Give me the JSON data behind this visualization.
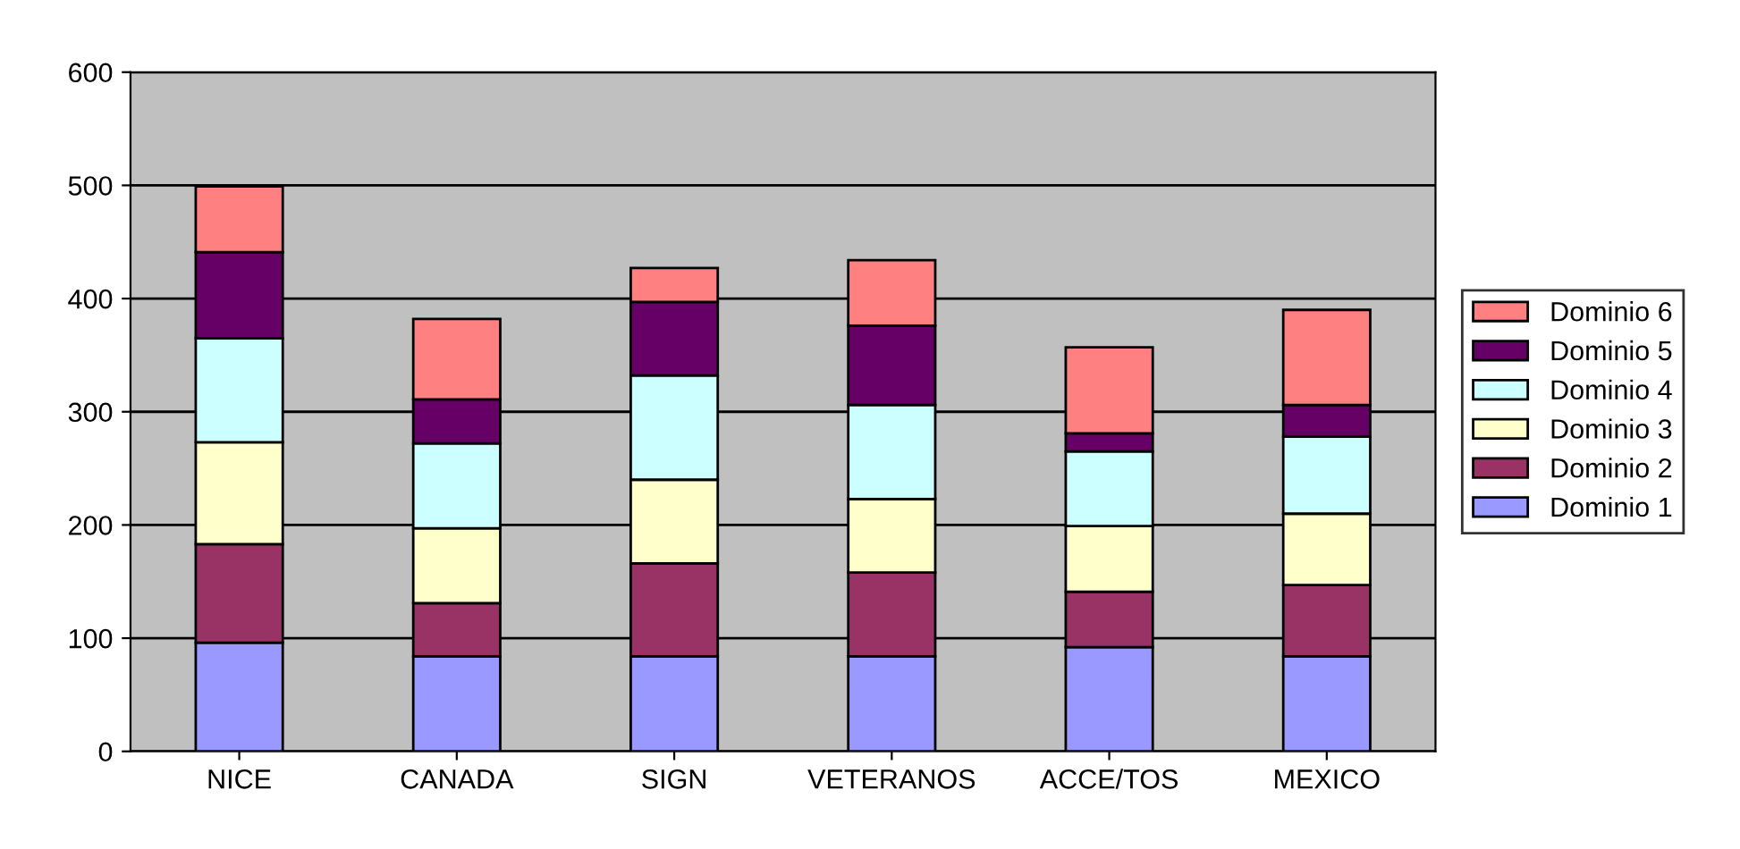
{
  "chart_data": {
    "type": "bar",
    "stacked": true,
    "categories": [
      "NICE",
      "CANADA",
      "SIGN",
      "VETERANOS",
      "ACCE/TOS",
      "MEXICO"
    ],
    "series": [
      {
        "name": "Dominio 1",
        "color": "#9999ff",
        "values": [
          96,
          84,
          84,
          84,
          92,
          84
        ]
      },
      {
        "name": "Dominio 2",
        "color": "#993366",
        "values": [
          87,
          47,
          82,
          74,
          49,
          63
        ]
      },
      {
        "name": "Dominio 3",
        "color": "#ffffcc",
        "values": [
          90,
          66,
          74,
          65,
          58,
          63
        ]
      },
      {
        "name": "Dominio 4",
        "color": "#ccffff",
        "values": [
          92,
          75,
          92,
          83,
          66,
          68
        ]
      },
      {
        "name": "Dominio 5",
        "color": "#660066",
        "values": [
          76,
          39,
          65,
          70,
          16,
          28
        ]
      },
      {
        "name": "Dominio 6",
        "color": "#ff8080",
        "values": [
          58,
          71,
          30,
          58,
          76,
          84
        ]
      }
    ],
    "ylim": [
      0,
      600
    ],
    "yticks": [
      0,
      100,
      200,
      300,
      400,
      500,
      600
    ],
    "grid": "y",
    "legend": "right"
  }
}
